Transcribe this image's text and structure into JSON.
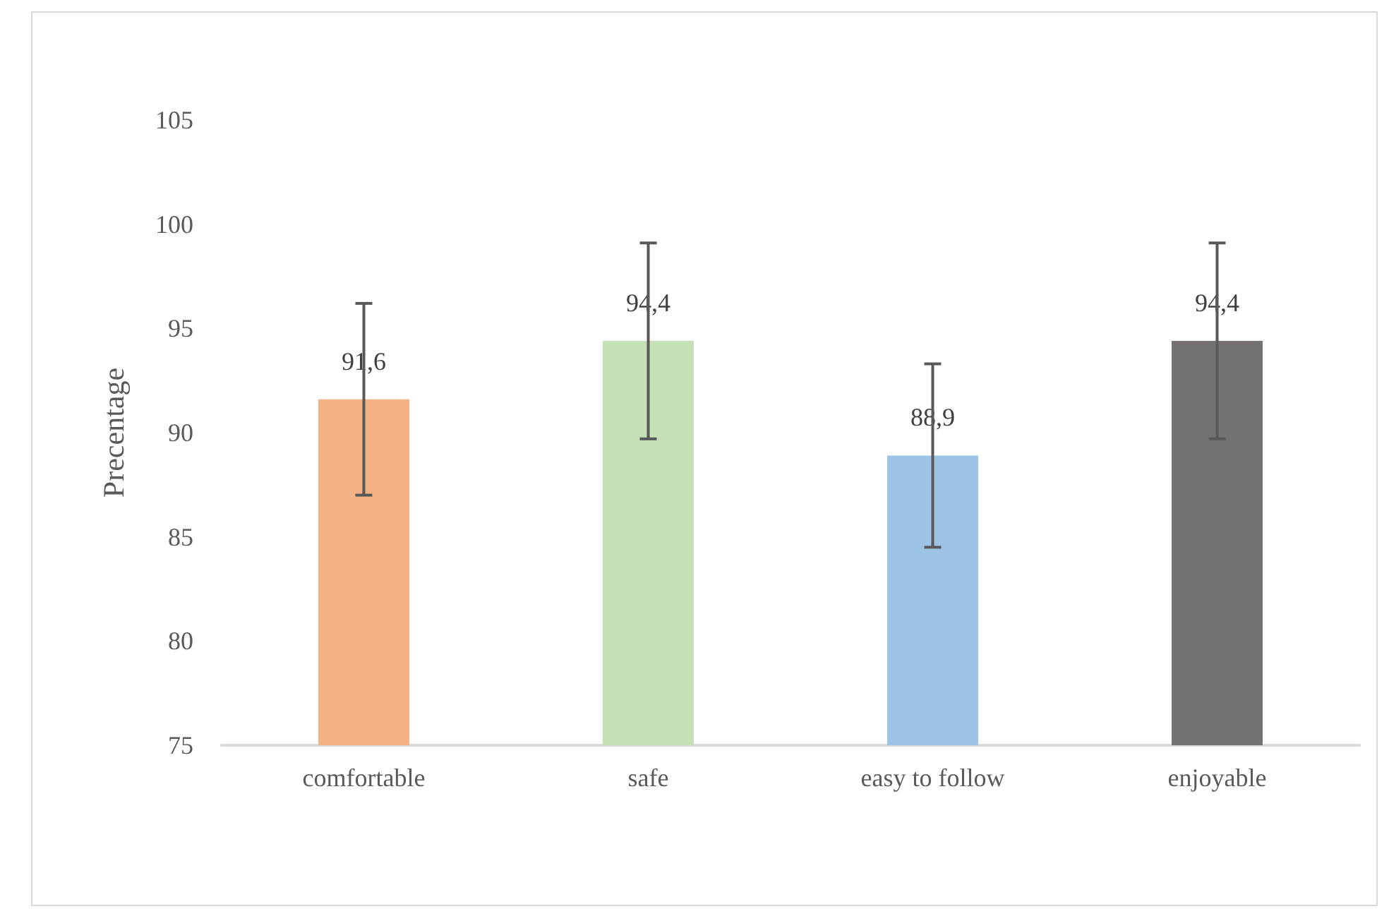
{
  "chart_data": {
    "type": "bar",
    "ylabel": "Precentage",
    "categories": [
      "comfortable",
      "safe",
      "easy to follow",
      "enjoyable"
    ],
    "values": [
      91.6,
      94.4,
      88.9,
      94.4
    ],
    "value_labels": [
      "91,6",
      "94,4",
      "88,9",
      "94,4"
    ],
    "errors": [
      4.6,
      4.7,
      4.4,
      4.7
    ],
    "colors": [
      "#f4b183",
      "#c5e0b4",
      "#9dc3e6",
      "#767171"
    ],
    "ylim": [
      75,
      105
    ],
    "yticks": [
      75,
      80,
      85,
      90,
      95,
      100,
      105
    ],
    "grid": false
  }
}
